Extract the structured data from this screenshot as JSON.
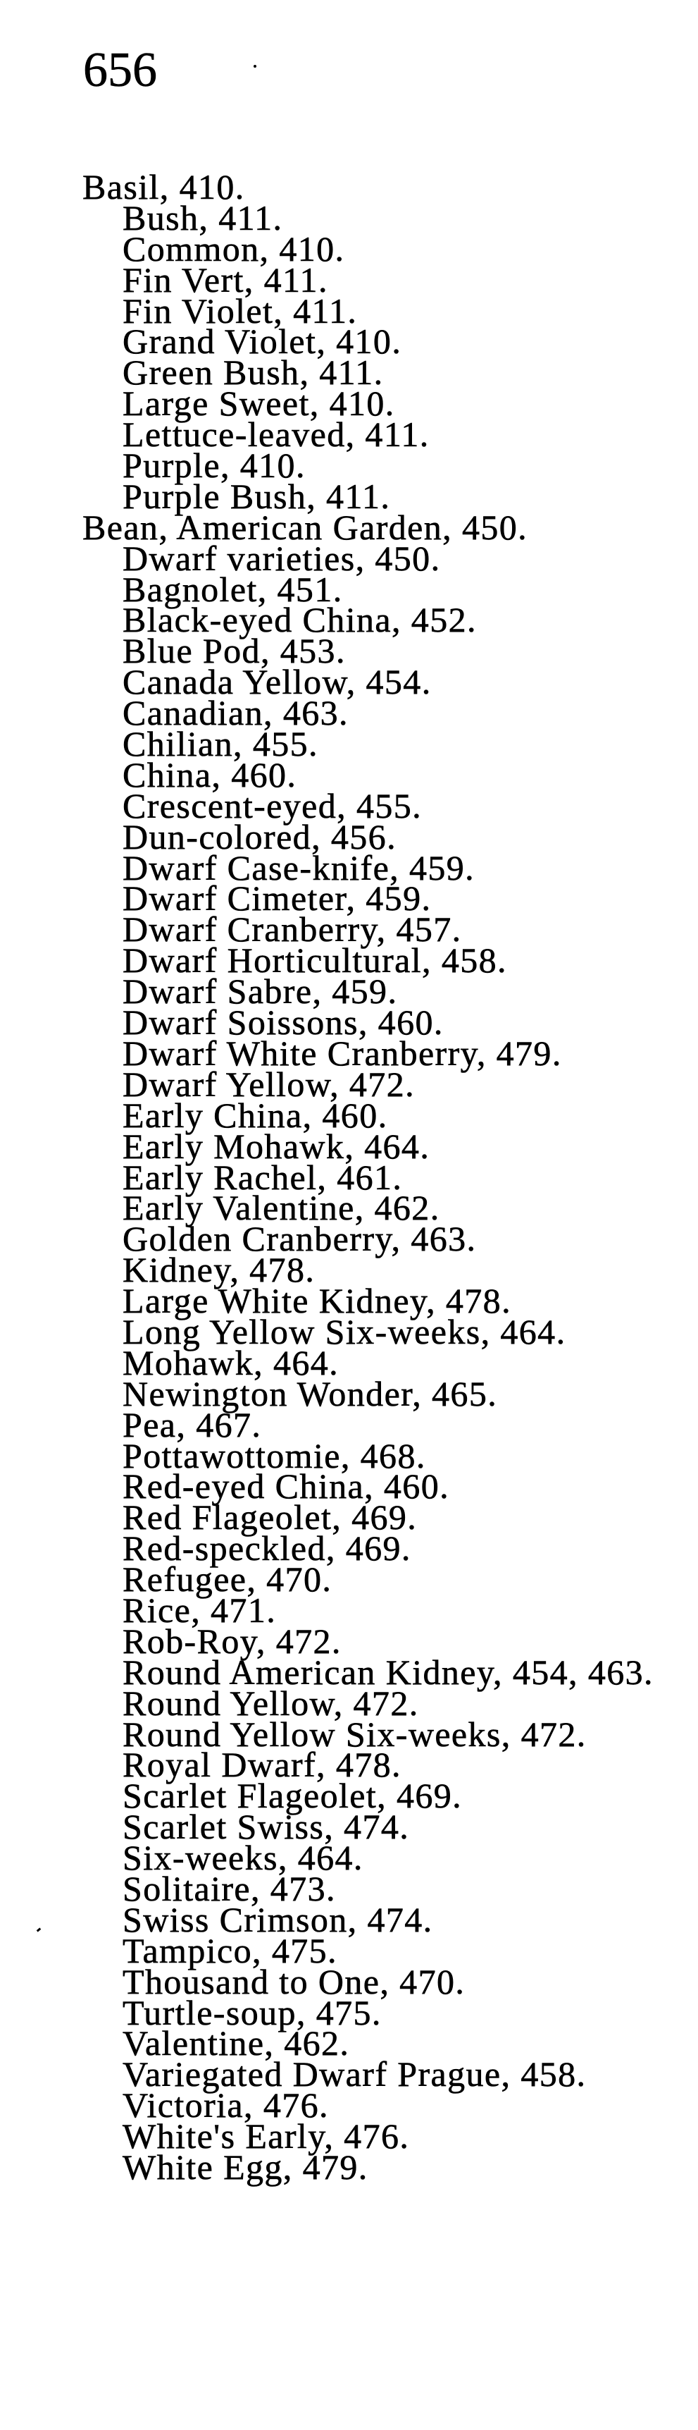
{
  "page_number": "656",
  "index": [
    {
      "heading": "Basil, 410.",
      "subentries": [
        "Bush, 411.",
        "Common, 410.",
        "Fin Vert, 411.",
        "Fin Violet, 411.",
        "Grand Violet, 410.",
        "Green Bush, 411.",
        "Large Sweet, 410.",
        "Lettuce-leaved, 411.",
        "Purple, 410.",
        "Purple Bush, 411."
      ]
    },
    {
      "heading": "Bean, American Garden, 450.",
      "subentries": [
        "Dwarf varieties, 450.",
        "Bagnolet, 451.",
        "Black-eyed China, 452.",
        "Blue Pod, 453.",
        "Canada Yellow, 454.",
        "Canadian, 463.",
        "Chilian, 455.",
        "China, 460.",
        "Crescent-eyed, 455.",
        "Dun-colored, 456.",
        "Dwarf Case-knife, 459.",
        "Dwarf Cimeter, 459.",
        "Dwarf Cranberry, 457.",
        "Dwarf Horticultural, 458.",
        "Dwarf Sabre, 459.",
        "Dwarf Soissons, 460.",
        "Dwarf White Cranberry, 479.",
        "Dwarf Yellow, 472.",
        "Early China, 460.",
        "Early Mohawk, 464.",
        "Early Rachel, 461.",
        "Early Valentine, 462.",
        "Golden Cranberry, 463.",
        "Kidney, 478.",
        "Large White Kidney, 478.",
        "Long Yellow Six-weeks, 464.",
        "Mohawk, 464.",
        "Newington Wonder, 465.",
        "Pea, 467.",
        "Pottawottomie, 468.",
        "Red-eyed China, 460.",
        "Red Flageolet, 469.",
        "Red-speckled, 469.",
        "Refugee, 470.",
        "Rice, 471.",
        "Rob-Roy, 472.",
        "Round American Kidney, 454, 463.",
        "Round Yellow, 472.",
        "Round Yellow Six-weeks, 472.",
        "Royal Dwarf, 478.",
        "Scarlet Flageolet, 469.",
        "Scarlet Swiss, 474.",
        "Six-weeks, 464.",
        "Solitaire, 473.",
        "Swiss Crimson, 474.",
        "Tampico, 475.",
        "Thousand to One, 470.",
        "Turtle-soup, 475.",
        "Valentine, 462.",
        "Variegated Dwarf Prague, 458.",
        "Victoria, 476.",
        "White's Early, 476.",
        "White Egg, 479."
      ]
    }
  ]
}
